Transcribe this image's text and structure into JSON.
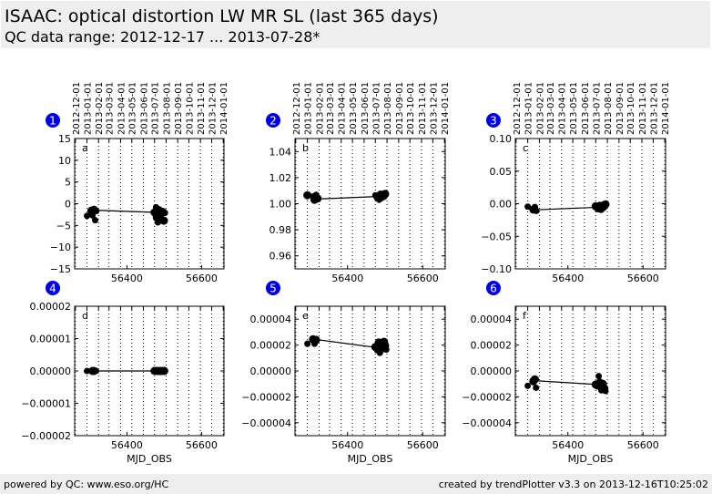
{
  "header": {
    "title": "ISAAC: optical distortion LW MR SL (last 365 days)",
    "subtitle": "QC data range: 2012-12-17 ... 2013-07-28*"
  },
  "footer": {
    "left": "powered by QC: www.eso.org/HC",
    "right": "created by trendPlotter v3.3 on 2013-12-16T10:25:02"
  },
  "colors": {
    "badge": "#0000ee",
    "markers": "#000000",
    "grid": "#000000"
  },
  "chart_data": [
    {
      "type": "scatter",
      "badge": "1",
      "panel_label": "a",
      "xlabel": "",
      "xlim": [
        56260,
        56660
      ],
      "xticks": [
        56400,
        56600
      ],
      "xtick_labels": [
        "56400",
        "56600"
      ],
      "date_ticks": [
        "2012-12-01",
        "2013-01-01",
        "2013-02-01",
        "2013-03-01",
        "2013-04-01",
        "2013-05-01",
        "2013-06-01",
        "2013-07-01",
        "2013-08-01",
        "2013-09-01",
        "2013-10-01",
        "2013-11-01",
        "2013-12-01",
        "2014-01-01"
      ],
      "date_tick_mjd": [
        56262,
        56293,
        56324,
        56352,
        56383,
        56413,
        56444,
        56474,
        56505,
        56536,
        56566,
        56597,
        56627,
        56658
      ],
      "ylim": [
        -15,
        15
      ],
      "yticks": [
        -15,
        -10,
        -5,
        0,
        5,
        10,
        15
      ],
      "ytick_labels": [
        "−15",
        "−10",
        "−5",
        "0",
        "5",
        "10",
        "15"
      ],
      "line": [
        [
          56310,
          -1.5
        ],
        [
          56480,
          -2.0
        ]
      ],
      "points": [
        {
          "x": 56293,
          "y": -2.8,
          "s": "s"
        },
        {
          "x": 56305,
          "y": -1.6,
          "s": "m"
        },
        {
          "x": 56308,
          "y": -2.7,
          "s": "s"
        },
        {
          "x": 56312,
          "y": -1.4,
          "s": "m"
        },
        {
          "x": 56315,
          "y": -3.8,
          "s": "s"
        },
        {
          "x": 56318,
          "y": -1.7,
          "s": "s"
        },
        {
          "x": 56474,
          "y": -2.0,
          "s": "m"
        },
        {
          "x": 56478,
          "y": -0.8,
          "s": "s"
        },
        {
          "x": 56480,
          "y": -3.2,
          "s": "m"
        },
        {
          "x": 56483,
          "y": -4.3,
          "s": "s"
        },
        {
          "x": 56486,
          "y": -1.5,
          "s": "m"
        },
        {
          "x": 56489,
          "y": -2.6,
          "s": "m"
        },
        {
          "x": 56492,
          "y": -3.6,
          "s": "s"
        },
        {
          "x": 56496,
          "y": -1.9,
          "s": "m"
        },
        {
          "x": 56499,
          "y": -3.9,
          "s": "m"
        },
        {
          "x": 56502,
          "y": -2.1,
          "s": "s"
        }
      ]
    },
    {
      "type": "scatter",
      "badge": "2",
      "panel_label": "b",
      "xlabel": "",
      "xlim": [
        56260,
        56660
      ],
      "xticks": [
        56400,
        56600
      ],
      "xtick_labels": [
        "56400",
        "56600"
      ],
      "date_ticks": [
        "2012-12-01",
        "2013-01-01",
        "2013-02-01",
        "2013-03-01",
        "2013-04-01",
        "2013-05-01",
        "2013-06-01",
        "2013-07-01",
        "2013-08-01",
        "2013-09-01",
        "2013-10-01",
        "2013-11-01",
        "2013-12-01",
        "2014-01-01"
      ],
      "date_tick_mjd": [
        56262,
        56293,
        56324,
        56352,
        56383,
        56413,
        56444,
        56474,
        56505,
        56536,
        56566,
        56597,
        56627,
        56658
      ],
      "ylim": [
        0.95,
        1.05
      ],
      "yticks": [
        0.96,
        0.98,
        1.0,
        1.02,
        1.04
      ],
      "ytick_labels": [
        "0.96",
        "0.98",
        "1.00",
        "1.02",
        "1.04"
      ],
      "line": [
        [
          56310,
          1.0035
        ],
        [
          56480,
          1.0055
        ]
      ],
      "points": [
        {
          "x": 56293,
          "y": 1.0065,
          "s": "m"
        },
        {
          "x": 56308,
          "y": 1.0055,
          "s": "s"
        },
        {
          "x": 56312,
          "y": 1.003,
          "s": "m"
        },
        {
          "x": 56316,
          "y": 1.0068,
          "s": "s"
        },
        {
          "x": 56320,
          "y": 1.004,
          "s": "m"
        },
        {
          "x": 56474,
          "y": 1.0065,
          "s": "s"
        },
        {
          "x": 56480,
          "y": 1.005,
          "s": "m"
        },
        {
          "x": 56484,
          "y": 1.003,
          "s": "s"
        },
        {
          "x": 56488,
          "y": 1.007,
          "s": "m"
        },
        {
          "x": 56492,
          "y": 1.0045,
          "s": "s"
        },
        {
          "x": 56496,
          "y": 1.006,
          "s": "m"
        },
        {
          "x": 56500,
          "y": 1.0075,
          "s": "m"
        }
      ]
    },
    {
      "type": "scatter",
      "badge": "3",
      "panel_label": "c",
      "xlabel": "",
      "xlim": [
        56260,
        56660
      ],
      "xticks": [
        56400,
        56600
      ],
      "xtick_labels": [
        "56400",
        "56600"
      ],
      "date_ticks": [
        "2012-12-01",
        "2013-01-01",
        "2013-02-01",
        "2013-03-01",
        "2013-04-01",
        "2013-05-01",
        "2013-06-01",
        "2013-07-01",
        "2013-08-01",
        "2013-09-01",
        "2013-10-01",
        "2013-11-01",
        "2013-12-01",
        "2014-01-01"
      ],
      "date_tick_mjd": [
        56262,
        56293,
        56324,
        56352,
        56383,
        56413,
        56444,
        56474,
        56505,
        56536,
        56566,
        56597,
        56627,
        56658
      ],
      "ylim": [
        -0.1,
        0.1
      ],
      "yticks": [
        -0.1,
        -0.05,
        0.0,
        0.05,
        0.1
      ],
      "ytick_labels": [
        "−0.10",
        "−0.05",
        "0.00",
        "0.05",
        "0.10"
      ],
      "line": [
        [
          56310,
          -0.0095
        ],
        [
          56480,
          -0.0055
        ]
      ],
      "points": [
        {
          "x": 56293,
          "y": -0.0045,
          "s": "s"
        },
        {
          "x": 56308,
          "y": -0.009,
          "s": "m"
        },
        {
          "x": 56312,
          "y": -0.005,
          "s": "s"
        },
        {
          "x": 56316,
          "y": -0.011,
          "s": "s"
        },
        {
          "x": 56474,
          "y": -0.004,
          "s": "m"
        },
        {
          "x": 56480,
          "y": -0.007,
          "s": "m"
        },
        {
          "x": 56484,
          "y": -0.002,
          "s": "s"
        },
        {
          "x": 56488,
          "y": -0.008,
          "s": "m"
        },
        {
          "x": 56492,
          "y": -0.003,
          "s": "m"
        },
        {
          "x": 56496,
          "y": -0.006,
          "s": "s"
        },
        {
          "x": 56500,
          "y": -0.001,
          "s": "m"
        }
      ]
    },
    {
      "type": "scatter",
      "badge": "4",
      "panel_label": "d",
      "xlabel": "MJD_OBS",
      "xlim": [
        56260,
        56660
      ],
      "xticks": [
        56400,
        56600
      ],
      "xtick_labels": [
        "56400",
        "56600"
      ],
      "date_ticks": [],
      "date_tick_mjd": [
        56262,
        56293,
        56324,
        56352,
        56383,
        56413,
        56444,
        56474,
        56505,
        56536,
        56566,
        56597,
        56627,
        56658
      ],
      "ylim": [
        -2e-05,
        2e-05
      ],
      "yticks": [
        -2e-05,
        -1e-05,
        0.0,
        1e-05,
        2e-05
      ],
      "ytick_labels": [
        "−0.00002",
        "−0.00001",
        "0.00000",
        "0.00001",
        "0.00002"
      ],
      "line": [
        [
          56310,
          0.0
        ],
        [
          56480,
          0.0
        ]
      ],
      "points": [
        {
          "x": 56293,
          "y": 0.0,
          "s": "s"
        },
        {
          "x": 56308,
          "y": 0.0,
          "s": "m"
        },
        {
          "x": 56312,
          "y": 0.0,
          "s": "m"
        },
        {
          "x": 56317,
          "y": 0.0,
          "s": "s"
        },
        {
          "x": 56474,
          "y": 0.0,
          "s": "m"
        },
        {
          "x": 56480,
          "y": 0.0,
          "s": "m"
        },
        {
          "x": 56485,
          "y": 0.0,
          "s": "m"
        },
        {
          "x": 56490,
          "y": 0.0,
          "s": "m"
        },
        {
          "x": 56495,
          "y": 0.0,
          "s": "m"
        },
        {
          "x": 56500,
          "y": 0.0,
          "s": "m"
        }
      ]
    },
    {
      "type": "scatter",
      "badge": "5",
      "panel_label": "e",
      "xlabel": "MJD_OBS",
      "xlim": [
        56260,
        56660
      ],
      "xticks": [
        56400,
        56600
      ],
      "xtick_labels": [
        "56400",
        "56600"
      ],
      "date_ticks": [],
      "date_tick_mjd": [
        56262,
        56293,
        56324,
        56352,
        56383,
        56413,
        56444,
        56474,
        56505,
        56536,
        56566,
        56597,
        56627,
        56658
      ],
      "ylim": [
        -5e-05,
        5e-05
      ],
      "yticks": [
        -4e-05,
        -2e-05,
        0.0,
        2e-05,
        4e-05
      ],
      "ytick_labels": [
        "−0.00004",
        "−0.00002",
        "0.00000",
        "0.00002",
        "0.00004"
      ],
      "line": [
        [
          56310,
          2.45e-05
        ],
        [
          56480,
          1.8e-05
        ]
      ],
      "points": [
        {
          "x": 56293,
          "y": 2.1e-05,
          "s": "s"
        },
        {
          "x": 56308,
          "y": 2.45e-05,
          "s": "m"
        },
        {
          "x": 56312,
          "y": 2.1e-05,
          "s": "s"
        },
        {
          "x": 56316,
          "y": 2.4e-05,
          "s": "m"
        },
        {
          "x": 56474,
          "y": 1.85e-05,
          "s": "m"
        },
        {
          "x": 56479,
          "y": 1.6e-05,
          "s": "s"
        },
        {
          "x": 56483,
          "y": 2.2e-05,
          "s": "m"
        },
        {
          "x": 56486,
          "y": 1.4e-05,
          "s": "s"
        },
        {
          "x": 56489,
          "y": 2e-05,
          "s": "m"
        },
        {
          "x": 56493,
          "y": 1.75e-05,
          "s": "m"
        },
        {
          "x": 56497,
          "y": 2.25e-05,
          "s": "m"
        },
        {
          "x": 56500,
          "y": 1.95e-05,
          "s": "m"
        },
        {
          "x": 56503,
          "y": 1.65e-05,
          "s": "s"
        }
      ]
    },
    {
      "type": "scatter",
      "badge": "6",
      "panel_label": "f",
      "xlabel": "MJD_OBS",
      "xlim": [
        56260,
        56660
      ],
      "xticks": [
        56400,
        56600
      ],
      "xtick_labels": [
        "56400",
        "56600"
      ],
      "date_ticks": [],
      "date_tick_mjd": [
        56262,
        56293,
        56324,
        56352,
        56383,
        56413,
        56444,
        56474,
        56505,
        56536,
        56566,
        56597,
        56627,
        56658
      ],
      "ylim": [
        -5e-05,
        5e-05
      ],
      "yticks": [
        -4e-05,
        -2e-05,
        0.0,
        2e-05,
        4e-05
      ],
      "ytick_labels": [
        "−0.00004",
        "−0.00002",
        "0.00000",
        "0.00002",
        "0.00004"
      ],
      "line": [
        [
          56310,
          -7.5e-06
        ],
        [
          56480,
          -1.05e-05
        ]
      ],
      "points": [
        {
          "x": 56293,
          "y": -1.15e-05,
          "s": "s"
        },
        {
          "x": 56308,
          "y": -8e-06,
          "s": "m"
        },
        {
          "x": 56312,
          "y": -6.5e-06,
          "s": "m"
        },
        {
          "x": 56315,
          "y": -1.3e-05,
          "s": "s"
        },
        {
          "x": 56474,
          "y": -1.05e-05,
          "s": "m"
        },
        {
          "x": 56478,
          "y": -1.2e-05,
          "s": "s"
        },
        {
          "x": 56482,
          "y": -4e-06,
          "s": "s"
        },
        {
          "x": 56485,
          "y": -9e-06,
          "s": "m"
        },
        {
          "x": 56489,
          "y": -1.5e-05,
          "s": "s"
        },
        {
          "x": 56493,
          "y": -1e-05,
          "s": "m"
        },
        {
          "x": 56497,
          "y": -1.35e-05,
          "s": "m"
        },
        {
          "x": 56500,
          "y": -1.55e-05,
          "s": "s"
        }
      ]
    }
  ]
}
